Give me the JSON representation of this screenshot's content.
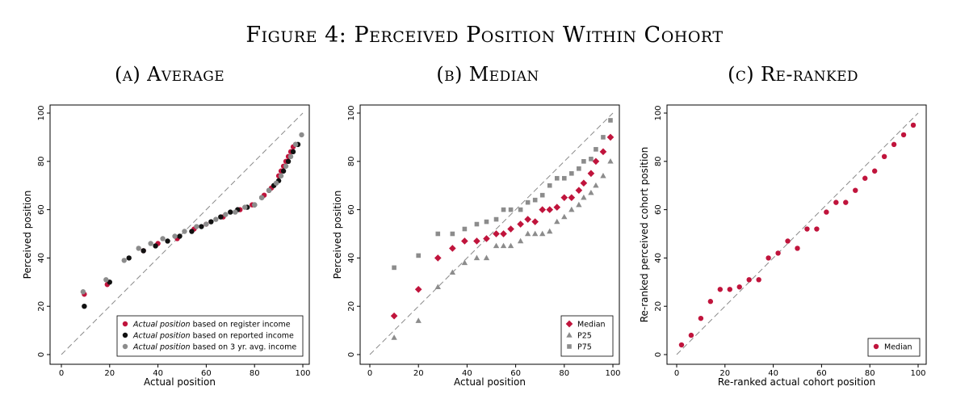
{
  "figure_title": "Figure 4: Perceived Position Within Cohort",
  "colors": {
    "red": "#c0143c",
    "black": "#111111",
    "gray": "#8c8c8c",
    "diag": "#8a8a8a"
  },
  "chart_data": [
    {
      "type": "scatter",
      "title": "(a) Average",
      "xlabel": "Actual position",
      "ylabel": "Perceived position",
      "xlim": [
        0,
        100
      ],
      "ylim": [
        0,
        100
      ],
      "xticks": [
        0,
        20,
        40,
        60,
        80,
        100
      ],
      "yticks": [
        0,
        20,
        40,
        60,
        80,
        100
      ],
      "diagonal": true,
      "legend_position": "bottom-right",
      "series": [
        {
          "label_italic": "Actual position",
          "label_rest": " based on register income",
          "color": "red",
          "marker": "circle",
          "x": [
            9.5,
            19,
            34,
            40,
            48,
            55,
            60,
            67,
            74,
            79,
            84,
            87,
            90,
            91,
            92,
            93,
            94,
            95,
            96,
            97
          ],
          "y": [
            25,
            29,
            43,
            46,
            48,
            52,
            54,
            57,
            60,
            62,
            66,
            69,
            74,
            76,
            78,
            80,
            82,
            84,
            86,
            87
          ]
        },
        {
          "label_italic": "Actual position",
          "label_rest": " based on reported income",
          "color": "black",
          "marker": "circle",
          "x": [
            9.5,
            20,
            28,
            34,
            39,
            44,
            49,
            54,
            58,
            62,
            66,
            70,
            73,
            77,
            80,
            83,
            86,
            88,
            90,
            92,
            94,
            96,
            98
          ],
          "y": [
            20,
            30,
            40,
            43,
            45,
            47,
            49,
            51,
            53,
            55,
            57,
            59,
            60,
            61,
            62,
            65,
            68,
            70,
            72,
            76,
            80,
            84,
            87
          ]
        },
        {
          "label_italic": "Actual position",
          "label_rest": " based on 3 yr. avg. income",
          "color": "gray",
          "marker": "circle",
          "x": [
            9,
            18.5,
            26,
            32,
            37,
            42,
            47,
            51,
            56,
            60,
            64,
            68,
            72,
            76,
            80,
            83,
            86,
            89,
            91,
            93,
            95,
            97,
            99.5
          ],
          "y": [
            26,
            31,
            39,
            44,
            46,
            48,
            49,
            51,
            53,
            54,
            56,
            58,
            59,
            61,
            62,
            65,
            68,
            71,
            74,
            78,
            82,
            87,
            91
          ]
        }
      ]
    },
    {
      "type": "scatter",
      "title": "(b) Median",
      "xlabel": "Actual position",
      "ylabel": "Perceived position",
      "xlim": [
        0,
        100
      ],
      "ylim": [
        0,
        100
      ],
      "xticks": [
        0,
        20,
        40,
        60,
        80,
        100
      ],
      "yticks": [
        0,
        20,
        40,
        60,
        80,
        100
      ],
      "diagonal": true,
      "legend_position": "bottom-right",
      "series": [
        {
          "name": "Median",
          "color": "red",
          "marker": "diamond",
          "x": [
            10,
            20,
            28,
            34,
            39,
            44,
            48,
            52,
            55,
            58,
            62,
            65,
            68,
            71,
            74,
            77,
            80,
            83,
            86,
            88,
            91,
            93,
            96,
            99
          ],
          "y": [
            16,
            27,
            40,
            44,
            47,
            47,
            48,
            50,
            50,
            52,
            54,
            56,
            55,
            60,
            60,
            61,
            65,
            65,
            68,
            71,
            75,
            80,
            84,
            90
          ]
        },
        {
          "name": "P25",
          "color": "gray",
          "marker": "triangle",
          "x": [
            10,
            20,
            28,
            34,
            39,
            44,
            48,
            52,
            55,
            58,
            62,
            65,
            68,
            71,
            74,
            77,
            80,
            83,
            86,
            88,
            91,
            93,
            96,
            99
          ],
          "y": [
            7,
            14,
            28,
            34,
            38,
            40,
            40,
            45,
            45,
            45,
            47,
            50,
            50,
            50,
            51,
            55,
            57,
            60,
            62,
            65,
            67,
            70,
            74,
            80
          ]
        },
        {
          "name": "P75",
          "color": "gray",
          "marker": "square",
          "x": [
            10,
            20,
            28,
            34,
            39,
            44,
            48,
            52,
            55,
            58,
            62,
            65,
            68,
            71,
            74,
            77,
            80,
            83,
            86,
            88,
            91,
            93,
            96,
            99
          ],
          "y": [
            36,
            41,
            50,
            50,
            52,
            54,
            55,
            56,
            60,
            60,
            60,
            63,
            64,
            66,
            70,
            73,
            73,
            75,
            77,
            80,
            81,
            85,
            90,
            97
          ]
        }
      ]
    },
    {
      "type": "scatter",
      "title": "(c) Re-ranked",
      "xlabel": "Re-ranked actual cohort position",
      "ylabel": "Re-ranked perceived cohort position",
      "xlim": [
        0,
        100
      ],
      "ylim": [
        0,
        100
      ],
      "xticks": [
        0,
        20,
        40,
        60,
        80,
        100
      ],
      "yticks": [
        0,
        20,
        40,
        60,
        80,
        100
      ],
      "diagonal": true,
      "legend_position": "bottom-right",
      "series": [
        {
          "name": "Median",
          "color": "red",
          "marker": "circle",
          "x": [
            2,
            6,
            10,
            14,
            18,
            22,
            26,
            30,
            34,
            38,
            42,
            46,
            50,
            54,
            58,
            62,
            66,
            70,
            74,
            78,
            82,
            86,
            90,
            94,
            98
          ],
          "y": [
            4,
            8,
            15,
            22,
            27,
            27,
            28,
            31,
            31,
            40,
            42,
            47,
            44,
            52,
            52,
            59,
            63,
            63,
            68,
            73,
            76,
            82,
            87,
            91,
            95
          ]
        }
      ]
    }
  ]
}
